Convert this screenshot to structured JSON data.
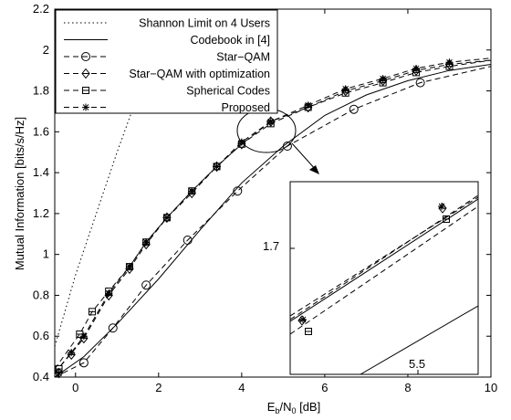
{
  "chart_data": {
    "type": "line",
    "xlabel_main": "E",
    "xlabel_sub1": "b",
    "xlabel_mid": "/N",
    "xlabel_sub2": "0",
    "xlabel_unit": " [dB]",
    "ylabel": "Mutual Information [bits/s/Hz]",
    "xlim": [
      -0.5,
      10
    ],
    "ylim": [
      0.4,
      2.2
    ],
    "xticks": [
      0,
      2,
      4,
      6,
      8,
      10
    ],
    "xtick_labels": [
      "0",
      "2",
      "4",
      "6",
      "8",
      "10"
    ],
    "yticks": [
      0.4,
      0.6,
      0.8,
      1.0,
      1.2,
      1.4,
      1.6,
      1.8,
      2.0,
      2.2
    ],
    "ytick_labels": [
      "0.4",
      "0.6",
      "0.8",
      "1",
      "1.2",
      "1.4",
      "1.6",
      "1.8",
      "2",
      "2.2"
    ],
    "grid": false,
    "legend_position": "top-left",
    "series": [
      {
        "name": "Shannon Limit on 4 Users",
        "style": "dotted",
        "marker": "none",
        "x": [
          -0.5,
          0,
          0.5,
          1.0,
          1.5,
          2.0,
          2.4
        ],
        "y": [
          0.55,
          0.9,
          1.2,
          1.5,
          1.78,
          2.05,
          2.2
        ]
      },
      {
        "name": "Codebook in [4]",
        "style": "solid",
        "marker": "none",
        "x": [
          -0.5,
          0.2,
          1.0,
          2.0,
          3.0,
          4.0,
          5.0,
          6.0,
          7.0,
          8.0,
          9.0,
          10.0
        ],
        "y": [
          0.4,
          0.5,
          0.66,
          0.88,
          1.12,
          1.35,
          1.53,
          1.68,
          1.78,
          1.85,
          1.9,
          1.93
        ]
      },
      {
        "name": "Star−QAM",
        "style": "dashed",
        "marker": "circle",
        "x": [
          -0.5,
          0.2,
          0.9,
          1.7,
          2.7,
          3.9,
          5.1,
          6.7,
          8.3,
          10.0
        ],
        "y": [
          0.4,
          0.47,
          0.64,
          0.85,
          1.07,
          1.31,
          1.53,
          1.71,
          1.84,
          1.92
        ],
        "marker_x": [
          0.2,
          0.9,
          1.7,
          2.7,
          3.9,
          5.1,
          6.7,
          8.3
        ],
        "marker_y": [
          0.47,
          0.64,
          0.85,
          1.07,
          1.31,
          1.53,
          1.71,
          1.84
        ]
      },
      {
        "name": "Star−QAM with optimization",
        "style": "dashed",
        "marker": "diamond",
        "x": [
          -0.5,
          0.2,
          0.8,
          1.3,
          1.7,
          2.2,
          2.8,
          3.4,
          4.0,
          4.7,
          5.6,
          6.5,
          7.4,
          8.2,
          9.0,
          10.0
        ],
        "y": [
          0.42,
          0.59,
          0.8,
          0.93,
          1.05,
          1.18,
          1.3,
          1.43,
          1.54,
          1.65,
          1.72,
          1.8,
          1.85,
          1.9,
          1.93,
          1.95
        ],
        "marker_x": [
          -0.4,
          -0.1,
          0.2,
          0.8,
          1.3,
          1.7,
          2.2,
          2.8,
          3.4,
          4.0,
          4.7,
          5.6,
          6.5,
          7.4,
          8.2,
          9.0
        ],
        "marker_y": [
          0.42,
          0.51,
          0.59,
          0.8,
          0.93,
          1.05,
          1.18,
          1.3,
          1.43,
          1.54,
          1.65,
          1.72,
          1.8,
          1.85,
          1.9,
          1.93
        ]
      },
      {
        "name": "Spherical Codes",
        "style": "dashed",
        "marker": "square",
        "x": [
          -0.5,
          0.1,
          0.4,
          0.8,
          1.3,
          1.7,
          2.2,
          2.8,
          3.4,
          4.0,
          4.7,
          5.6,
          6.5,
          7.4,
          8.2,
          9.0,
          10.0
        ],
        "y": [
          0.44,
          0.61,
          0.72,
          0.82,
          0.94,
          1.06,
          1.18,
          1.31,
          1.43,
          1.54,
          1.64,
          1.72,
          1.79,
          1.84,
          1.89,
          1.92,
          1.95
        ],
        "marker_x": [
          -0.4,
          0.1,
          0.4,
          0.8,
          1.3,
          1.7,
          2.2,
          2.8,
          3.4,
          4.0,
          4.7,
          5.6,
          6.5,
          7.4,
          8.2,
          9.0
        ],
        "marker_y": [
          0.44,
          0.61,
          0.72,
          0.82,
          0.94,
          1.06,
          1.18,
          1.31,
          1.43,
          1.54,
          1.64,
          1.72,
          1.79,
          1.84,
          1.89,
          1.92
        ]
      },
      {
        "name": "Proposed",
        "style": "dashed",
        "marker": "asterisk",
        "x": [
          -0.5,
          -0.1,
          0.2,
          0.8,
          1.3,
          1.7,
          2.2,
          2.8,
          3.4,
          4.0,
          4.7,
          5.6,
          6.5,
          7.4,
          8.2,
          9.0,
          10.0
        ],
        "y": [
          0.42,
          0.52,
          0.6,
          0.81,
          0.94,
          1.06,
          1.18,
          1.31,
          1.43,
          1.55,
          1.65,
          1.73,
          1.81,
          1.86,
          1.91,
          1.94,
          1.96
        ],
        "marker_x": [
          -0.4,
          -0.1,
          0.2,
          0.8,
          1.3,
          1.7,
          2.2,
          2.8,
          3.4,
          4.0,
          4.7,
          5.6,
          6.5,
          7.4,
          8.2,
          9.0
        ],
        "marker_y": [
          0.42,
          0.52,
          0.6,
          0.81,
          0.94,
          1.06,
          1.18,
          1.31,
          1.43,
          1.55,
          1.65,
          1.73,
          1.81,
          1.86,
          1.91,
          1.94
        ]
      }
    ],
    "inset": {
      "ytick_label": "1.7",
      "xtick_label": "5.5"
    }
  }
}
